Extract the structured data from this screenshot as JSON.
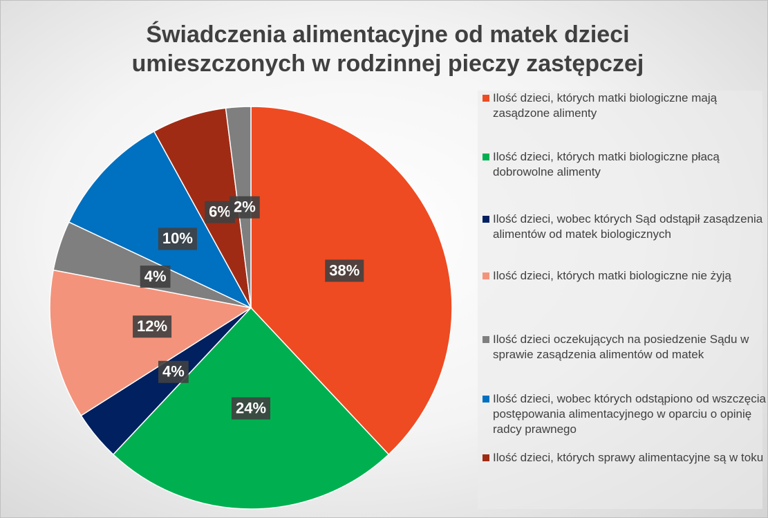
{
  "chart_data": {
    "type": "pie",
    "title": "Świadczenia alimentacyjne od matek dzieci umieszczonych w rodzinnej pieczy zastępczej",
    "categories": [
      "Ilość dzieci, których matki biologiczne mają zasądzone alimenty",
      "Ilość dzieci, których matki biologiczne płacą dobrowolne alimenty",
      "Ilość dzieci, wobec których Sąd  odstąpił zasądzenia alimentów od matek biologicznych",
      "Ilość dzieci, których matki biologiczne nie żyją",
      "Ilość dzieci oczekujących na posiedzenie Sądu w sprawie zasądzenia alimentów od matek",
      "Ilość dzieci, wobec których odstąpiono od wszczęcia postępowania alimentacyjnego w oparciu o opinię radcy prawnego",
      "Ilość dzieci, których sprawy alimentacyjne są w toku",
      null
    ],
    "values": [
      38,
      24,
      4,
      12,
      4,
      10,
      6,
      2
    ],
    "value_labels": [
      "38%",
      "24%",
      "4%",
      "12%",
      "4%",
      "10%",
      "6%",
      "2%"
    ],
    "colors": [
      "#ee4b23",
      "#00b050",
      "#002060",
      "#f4937b",
      "#7f7f7f",
      "#0070c0",
      "#a02b14",
      "#7f7f7f"
    ],
    "legend": "right"
  }
}
